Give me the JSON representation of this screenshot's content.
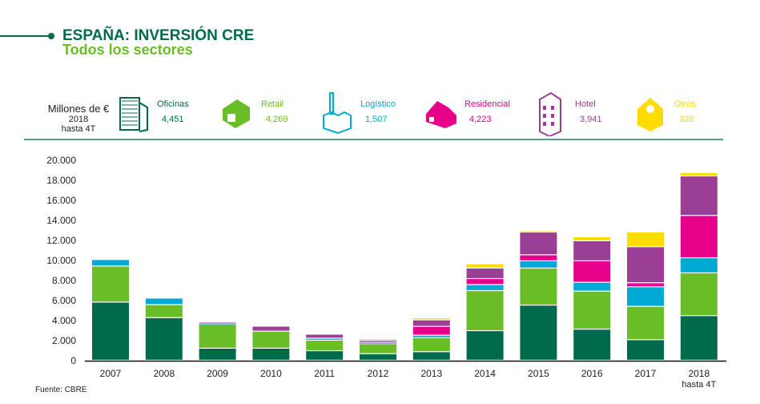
{
  "header": {
    "title": "ESPAÑA: INVERSIÓN CRE",
    "subtitle": "Todos los sectores"
  },
  "units": {
    "line1": "Millones de €",
    "line2": "2018",
    "line3": "hasta 4T"
  },
  "legend": [
    {
      "name": "Oficinas",
      "value": "4,451",
      "color": "#006a4d",
      "icon": "office-building-icon"
    },
    {
      "name": "Retail",
      "value": "4,269",
      "color": "#69be28",
      "icon": "retail-store-icon"
    },
    {
      "name": "Logístico",
      "value": "1,507",
      "color": "#00a9d4",
      "icon": "factory-icon"
    },
    {
      "name": "Residencial",
      "value": "4,223",
      "color": "#e6008a",
      "icon": "house-icon"
    },
    {
      "name": "Hotel",
      "value": "3,941",
      "color": "#9b3f96",
      "icon": "hotel-icon"
    },
    {
      "name": "Otros",
      "value": "328",
      "color": "#ffdc00",
      "icon": "other-building-icon"
    }
  ],
  "source": "Fuente: CBRE",
  "chart_data": {
    "type": "bar",
    "stacked": true,
    "categories": [
      "2007",
      "2008",
      "2009",
      "2010",
      "2011",
      "2012",
      "2013",
      "2014",
      "2015",
      "2016",
      "2017",
      "2018"
    ],
    "category_sublabels": {
      "2018": "hasta 4T"
    },
    "ylim": [
      0,
      20000
    ],
    "yticks": [
      "0",
      "2.000",
      "4.000",
      "6.000",
      "8.000",
      "10.000",
      "12.000",
      "14.000",
      "16.000",
      "18.000",
      "20.000"
    ],
    "grid": false,
    "series": [
      {
        "name": "Oficinas",
        "color": "#006a4d",
        "values": [
          5800,
          4250,
          1200,
          1200,
          950,
          650,
          850,
          2950,
          5500,
          3100,
          2050,
          4451
        ]
      },
      {
        "name": "Retail",
        "color": "#69be28",
        "values": [
          3600,
          1300,
          2400,
          1700,
          1050,
          950,
          1400,
          4000,
          3700,
          3800,
          3330,
          4269
        ]
      },
      {
        "name": "Logístico",
        "color": "#00a9d4",
        "values": [
          650,
          650,
          100,
          0,
          200,
          100,
          250,
          600,
          720,
          880,
          1950,
          1507
        ]
      },
      {
        "name": "Residencial",
        "color": "#e6008a",
        "values": [
          0,
          0,
          0,
          0,
          0,
          100,
          880,
          600,
          600,
          2140,
          400,
          4223
        ]
      },
      {
        "name": "Hotel",
        "color": "#9b3f96",
        "values": [
          0,
          0,
          100,
          500,
          400,
          200,
          650,
          1050,
          2270,
          2000,
          3600,
          3941
        ]
      },
      {
        "name": "Otros",
        "color": "#ffdc00",
        "values": [
          0,
          0,
          0,
          0,
          0,
          150,
          200,
          430,
          130,
          400,
          1470,
          328
        ]
      }
    ]
  }
}
